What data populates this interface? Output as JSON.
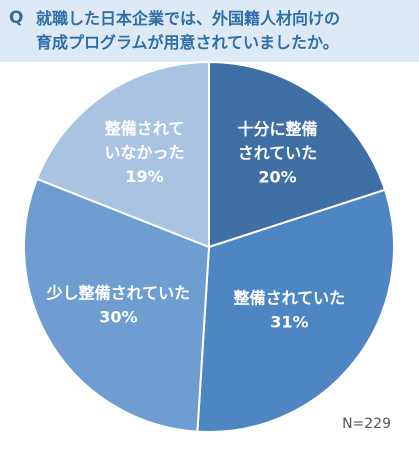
{
  "question": {
    "marker": "Q",
    "text": "就職した日本企業では、外国籍人材向けの\n育成プログラムが用意されていましたか。"
  },
  "sample_size": "N=229",
  "colors": {
    "fully": "#3f6fa5",
    "prepared": "#4e86c3",
    "somewhat": "#6f9dd1",
    "not": "#a9c3e3",
    "label": "#ffffff"
  },
  "chart_data": {
    "type": "pie",
    "title": "",
    "slices": [
      {
        "label_lines": [
          "十分に整備",
          "されていた"
        ],
        "value": 20,
        "value_label": "20%"
      },
      {
        "label_lines": [
          "整備されていた"
        ],
        "value": 31,
        "value_label": "31%"
      },
      {
        "label_lines": [
          "少し整備されていた"
        ],
        "value": 30,
        "value_label": "30%"
      },
      {
        "label_lines": [
          "整備されて",
          "いなかった"
        ],
        "value": 19,
        "value_label": "19%"
      }
    ]
  }
}
